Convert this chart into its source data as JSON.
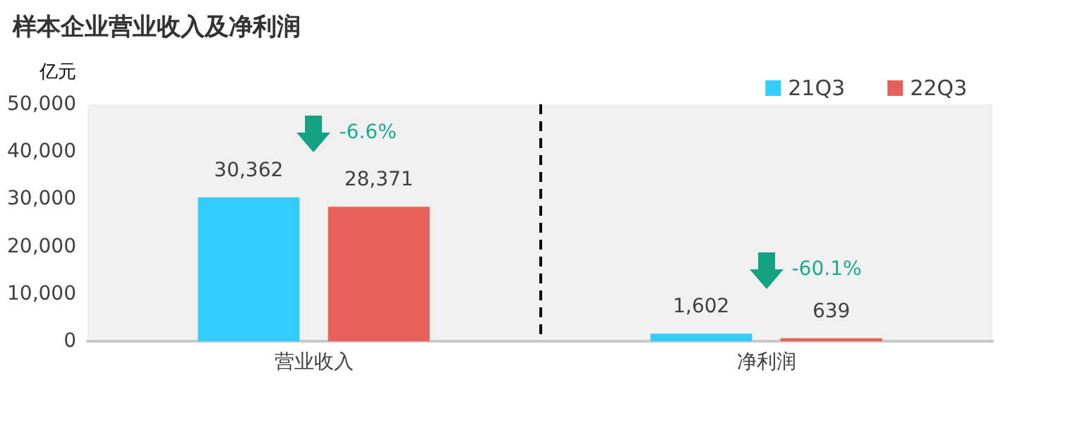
{
  "chart_data": {
    "type": "bar",
    "title": "样本企业营业收入及净利润",
    "ylabel": "亿元",
    "categories": [
      "营业收入",
      "净利润"
    ],
    "series": [
      {
        "name": "21Q3",
        "color": "#33ccff",
        "values": [
          30362,
          1602
        ],
        "value_labels": [
          "30,362",
          "1,602"
        ]
      },
      {
        "name": "22Q3",
        "color": "#e8605a",
        "values": [
          28371,
          639
        ],
        "value_labels": [
          "28,371",
          "639"
        ]
      }
    ],
    "ylim": [
      0,
      50000
    ],
    "yticks": [
      0,
      {
        "value": 10000,
        "label": "10,000"
      },
      {
        "value": 20000,
        "label": "20,000"
      },
      {
        "value": 30000,
        "label": "30,000"
      },
      {
        "value": 40000,
        "label": "40,000"
      },
      {
        "value": 50000,
        "label": "50,000"
      }
    ],
    "legend": "top right",
    "grid": false,
    "annotations": [
      "-6.6%",
      "-60.1%"
    ]
  }
}
